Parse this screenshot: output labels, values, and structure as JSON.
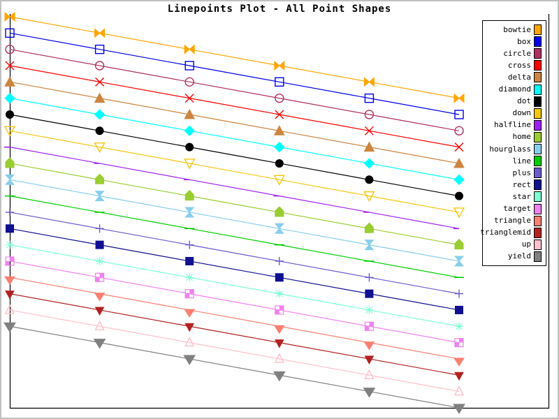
{
  "title": "Linepoints Plot - All Point Shapes",
  "colors": {
    "frame": "#000000",
    "window_border": "#c0c0c0",
    "background": "#ffffff"
  },
  "chart_data": {
    "type": "line",
    "title": "Linepoints Plot - All Point Shapes",
    "xlabel": "",
    "ylabel": "",
    "x": [
      0,
      1,
      2,
      3,
      4,
      5
    ],
    "xlim": [
      0,
      5
    ],
    "ylim": [
      0,
      24
    ],
    "grid": false,
    "axis_tick_labels": false,
    "frame_sides": [
      "left",
      "bottom",
      "right"
    ],
    "legend_position": "right",
    "description": "20 parallel descending straight lines, one per point-marker shape; each line has 6 evenly spaced markers and no axis tick labels",
    "series": [
      {
        "name": "bowtie",
        "shape": "bowtie",
        "color": "#FFA500",
        "values": [
          24,
          23,
          22,
          21,
          20,
          19
        ]
      },
      {
        "name": "box",
        "shape": "box",
        "color": "#0000EE",
        "values": [
          23,
          22,
          21,
          20,
          19,
          18
        ]
      },
      {
        "name": "circle",
        "shape": "circle",
        "color": "#B03060",
        "values": [
          22,
          21,
          20,
          19,
          18,
          17
        ]
      },
      {
        "name": "cross",
        "shape": "cross",
        "color": "#FF0000",
        "values": [
          21,
          20,
          19,
          18,
          17,
          16
        ]
      },
      {
        "name": "delta",
        "shape": "delta",
        "color": "#CD853F",
        "values": [
          20,
          19,
          18,
          17,
          16,
          15
        ]
      },
      {
        "name": "diamond",
        "shape": "diamond",
        "color": "#00FFFF",
        "values": [
          19,
          18,
          17,
          16,
          15,
          14
        ]
      },
      {
        "name": "dot",
        "shape": "dot",
        "color": "#000000",
        "values": [
          18,
          17,
          16,
          15,
          14,
          13
        ]
      },
      {
        "name": "down",
        "shape": "down",
        "color": "#F5C710",
        "values": [
          17,
          16,
          15,
          14,
          13,
          12
        ]
      },
      {
        "name": "halfline",
        "shape": "halfline",
        "color": "#A020F0",
        "values": [
          16,
          15,
          14,
          13,
          12,
          11
        ]
      },
      {
        "name": "home",
        "shape": "home",
        "color": "#9ACD32",
        "values": [
          15,
          14,
          13,
          12,
          11,
          10
        ]
      },
      {
        "name": "hourglass",
        "shape": "hourglass",
        "color": "#87CEEB",
        "values": [
          14,
          13,
          12,
          11,
          10,
          9
        ]
      },
      {
        "name": "line",
        "shape": "line",
        "color": "#00CD00",
        "values": [
          13,
          12,
          11,
          10,
          9,
          8
        ]
      },
      {
        "name": "plus",
        "shape": "plus",
        "color": "#6A5ACD",
        "values": [
          12,
          11,
          10,
          9,
          8,
          7
        ]
      },
      {
        "name": "rect",
        "shape": "rect",
        "color": "#101090",
        "values": [
          11,
          10,
          9,
          8,
          7,
          6
        ]
      },
      {
        "name": "star",
        "shape": "star",
        "color": "#7FFFD4",
        "values": [
          10,
          9,
          8,
          7,
          6,
          5
        ]
      },
      {
        "name": "target",
        "shape": "target",
        "color": "#EE82EE",
        "values": [
          9,
          8,
          7,
          6,
          5,
          4
        ]
      },
      {
        "name": "triangle",
        "shape": "triangle",
        "color": "#FA8072",
        "values": [
          8,
          7,
          6,
          5,
          4,
          3
        ]
      },
      {
        "name": "trianglemid",
        "shape": "trianglemid",
        "color": "#B22222",
        "values": [
          7,
          6,
          5,
          4,
          3,
          2
        ]
      },
      {
        "name": "up",
        "shape": "up",
        "color": "#FFC0CB",
        "values": [
          6,
          5,
          4,
          3,
          2,
          1
        ]
      },
      {
        "name": "yield",
        "shape": "yield",
        "color": "#808080",
        "values": [
          5,
          4,
          3,
          2,
          1,
          0
        ]
      }
    ]
  }
}
